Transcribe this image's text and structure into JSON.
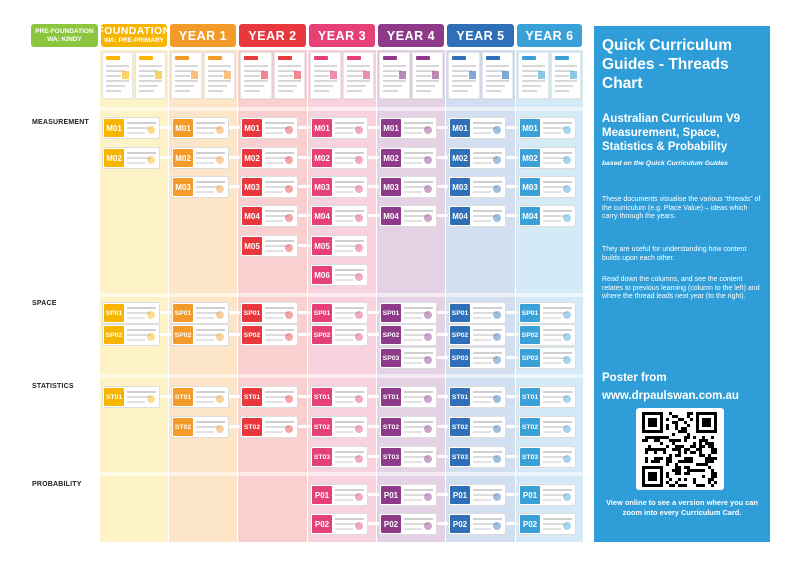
{
  "columns": [
    {
      "label": "PRE-FOUNDATION",
      "label2": "WA: KINDY",
      "color": "#8cc63f",
      "bg": "#ffffff"
    },
    {
      "label": "FOUNDATION",
      "label2": "WA: PRE-PRIMARY",
      "color": "#f7b500",
      "bg": "#fdf3c6"
    },
    {
      "label": "YEAR 1",
      "label2": "",
      "color": "#f39a28",
      "bg": "#fde6c8"
    },
    {
      "label": "YEAR 2",
      "label2": "",
      "color": "#e8383d",
      "bg": "#f9d0cf"
    },
    {
      "label": "YEAR 3",
      "label2": "",
      "color": "#e54177",
      "bg": "#f9d2df"
    },
    {
      "label": "YEAR 4",
      "label2": "",
      "color": "#8e3a8a",
      "bg": "#e4d1e3"
    },
    {
      "label": "YEAR 5",
      "label2": "",
      "color": "#2f6fb7",
      "bg": "#d2dff1"
    },
    {
      "label": "YEAR 6",
      "label2": "",
      "color": "#3aa0d8",
      "bg": "#d4ebf7"
    }
  ],
  "sections": [
    "MEASUREMENT",
    "SPACE",
    "STATISTICS",
    "PROBABILITY"
  ],
  "panel": {
    "title": "Quick Curriculum Guides - Threads Chart",
    "subtitle": "Australian Curriculum V9 Measurement, Space, Statistics & Probability",
    "italic": "based on the Quick Curriculum Guides",
    "body1": "These documents visualise the various “threads” of the curriculum (e.g. Place Value) – ideas which carry through the years.",
    "body2": "They are useful for understanding how content builds upon each other.",
    "body3": "Read down the columns, and see the content relates to previous learning (column to the left) and where the thread leads next year (to the right).",
    "poster1": "Poster from",
    "poster2": "www.drpaulswan.com.au",
    "view": "View online to see a version where you can zoom into every Curriculum Card."
  },
  "cards": [
    {
      "col": 1,
      "row": 0,
      "code": "M01"
    },
    {
      "col": 1,
      "row": 1,
      "code": "M02"
    },
    {
      "col": 2,
      "row": 0,
      "code": "M01"
    },
    {
      "col": 2,
      "row": 1,
      "code": "M02"
    },
    {
      "col": 2,
      "row": 2,
      "code": "M03"
    },
    {
      "col": 3,
      "row": 0,
      "code": "M01"
    },
    {
      "col": 3,
      "row": 1,
      "code": "M02"
    },
    {
      "col": 3,
      "row": 2,
      "code": "M03"
    },
    {
      "col": 3,
      "row": 3,
      "code": "M04"
    },
    {
      "col": 3,
      "row": 4,
      "code": "M05"
    },
    {
      "col": 4,
      "row": 0,
      "code": "M01"
    },
    {
      "col": 4,
      "row": 1,
      "code": "M02"
    },
    {
      "col": 4,
      "row": 2,
      "code": "M03"
    },
    {
      "col": 4,
      "row": 3,
      "code": "M04"
    },
    {
      "col": 4,
      "row": 4,
      "code": "M05"
    },
    {
      "col": 4,
      "row": 5,
      "code": "M06"
    },
    {
      "col": 5,
      "row": 0,
      "code": "M01"
    },
    {
      "col": 5,
      "row": 1,
      "code": "M02"
    },
    {
      "col": 5,
      "row": 2,
      "code": "M03"
    },
    {
      "col": 5,
      "row": 3,
      "code": "M04"
    },
    {
      "col": 6,
      "row": 0,
      "code": "M01"
    },
    {
      "col": 6,
      "row": 1,
      "code": "M02"
    },
    {
      "col": 6,
      "row": 2,
      "code": "M03"
    },
    {
      "col": 6,
      "row": 3,
      "code": "M04"
    },
    {
      "col": 7,
      "row": 0,
      "code": "M01"
    },
    {
      "col": 7,
      "row": 1,
      "code": "M02"
    },
    {
      "col": 7,
      "row": 2,
      "code": "M03"
    },
    {
      "col": 7,
      "row": 3,
      "code": "M04"
    },
    {
      "col": 1,
      "row": 6,
      "code": "SP01"
    },
    {
      "col": 1,
      "row": 7,
      "code": "SP02"
    },
    {
      "col": 2,
      "row": 6,
      "code": "SP01"
    },
    {
      "col": 2,
      "row": 7,
      "code": "SP02"
    },
    {
      "col": 3,
      "row": 6,
      "code": "SP01"
    },
    {
      "col": 3,
      "row": 7,
      "code": "SP02"
    },
    {
      "col": 4,
      "row": 6,
      "code": "SP01"
    },
    {
      "col": 4,
      "row": 7,
      "code": "SP02"
    },
    {
      "col": 5,
      "row": 6,
      "code": "SP01"
    },
    {
      "col": 5,
      "row": 7,
      "code": "SP02"
    },
    {
      "col": 5,
      "row": 8,
      "code": "SP03"
    },
    {
      "col": 6,
      "row": 6,
      "code": "SP01"
    },
    {
      "col": 6,
      "row": 7,
      "code": "SP02"
    },
    {
      "col": 6,
      "row": 8,
      "code": "SP03"
    },
    {
      "col": 7,
      "row": 6,
      "code": "SP01"
    },
    {
      "col": 7,
      "row": 7,
      "code": "SP02"
    },
    {
      "col": 7,
      "row": 8,
      "code": "SP03"
    },
    {
      "col": 1,
      "row": 9,
      "code": "ST01"
    },
    {
      "col": 2,
      "row": 9,
      "code": "ST01"
    },
    {
      "col": 2,
      "row": 10,
      "code": "ST02"
    },
    {
      "col": 3,
      "row": 9,
      "code": "ST01"
    },
    {
      "col": 3,
      "row": 10,
      "code": "ST02"
    },
    {
      "col": 4,
      "row": 9,
      "code": "ST01"
    },
    {
      "col": 4,
      "row": 10,
      "code": "ST02"
    },
    {
      "col": 4,
      "row": 11,
      "code": "ST03"
    },
    {
      "col": 5,
      "row": 9,
      "code": "ST01"
    },
    {
      "col": 5,
      "row": 10,
      "code": "ST02"
    },
    {
      "col": 5,
      "row": 11,
      "code": "ST03"
    },
    {
      "col": 6,
      "row": 9,
      "code": "ST01"
    },
    {
      "col": 6,
      "row": 10,
      "code": "ST02"
    },
    {
      "col": 6,
      "row": 11,
      "code": "ST03"
    },
    {
      "col": 7,
      "row": 9,
      "code": "ST01"
    },
    {
      "col": 7,
      "row": 10,
      "code": "ST02"
    },
    {
      "col": 7,
      "row": 11,
      "code": "ST03"
    },
    {
      "col": 4,
      "row": 12,
      "code": "P01"
    },
    {
      "col": 4,
      "row": 13,
      "code": "P02"
    },
    {
      "col": 5,
      "row": 12,
      "code": "P01"
    },
    {
      "col": 5,
      "row": 13,
      "code": "P02"
    },
    {
      "col": 6,
      "row": 12,
      "code": "P01"
    },
    {
      "col": 6,
      "row": 13,
      "code": "P02"
    },
    {
      "col": 7,
      "row": 12,
      "code": "P01"
    },
    {
      "col": 7,
      "row": 13,
      "code": "P02"
    }
  ]
}
